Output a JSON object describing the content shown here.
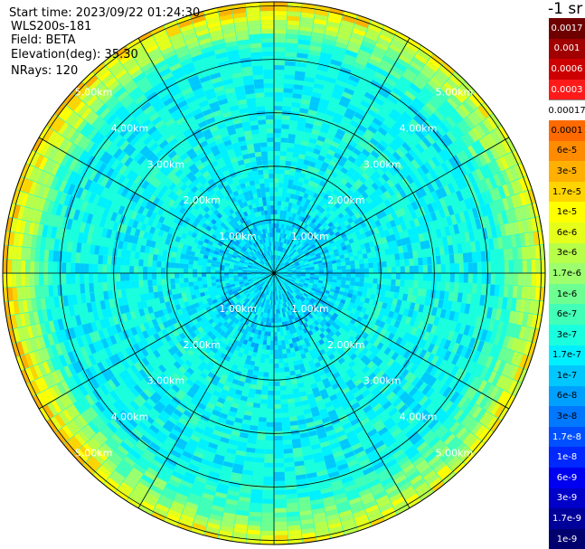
{
  "info": {
    "start_time": "Start time: 2023/09/22 01:24:30",
    "instrument": "WLS200s-181",
    "field": "Field: BETA",
    "elevation": "Elevation(deg): 35.30",
    "nrays": "NRays: 120"
  },
  "colorbar": {
    "title": "-1 sr",
    "labels": [
      "0.0017",
      "0.001",
      "0.0006",
      "0.0003",
      "0.00017",
      "0.0001",
      "6e-5",
      "3e-5",
      "1.7e-5",
      "1e-5",
      "6e-6",
      "3e-6",
      "1.7e-6",
      "1e-6",
      "6e-7",
      "3e-7",
      "1.7e-7",
      "1e-7",
      "6e-8",
      "3e-8",
      "1.7e-8",
      "1e-8",
      "6e-9",
      "3e-9",
      "1.7e-9",
      "1e-9"
    ],
    "colors": [
      "#6e0000",
      "#a00000",
      "#cc0000",
      "#ff1a1a",
      "#ffffff",
      "#ff6a00",
      "#ff8c00",
      "#ffb000",
      "#ffd400",
      "#ffff00",
      "#e6ff1a",
      "#b8ff4a",
      "#9dff6e",
      "#6dff91",
      "#42ffb8",
      "#1affde",
      "#00f0ff",
      "#00c8ff",
      "#00a0ff",
      "#0078ff",
      "#0050ff",
      "#0028ff",
      "#0000f0",
      "#0000c8",
      "#00009a",
      "#00006e"
    ],
    "label_colors": [
      "#ffffff",
      "#ffffff",
      "#ffffff",
      "#ffffff",
      "#000000",
      "#000000",
      "#000000",
      "#000000",
      "#000000",
      "#000000",
      "#000000",
      "#000000",
      "#000000",
      "#000000",
      "#000000",
      "#000000",
      "#000000",
      "#000000",
      "#000000",
      "#000000",
      "#ffffff",
      "#ffffff",
      "#ffffff",
      "#ffffff",
      "#ffffff",
      "#ffffff"
    ]
  },
  "chart_data": {
    "type": "ppi",
    "field": "BETA",
    "units": "-1 sr",
    "elevation_deg": 35.3,
    "n_rays": 120,
    "range_rings_km": [
      1.0,
      2.0,
      3.0,
      4.0,
      5.0
    ],
    "range_labels": [
      "1.00km",
      "2.00km",
      "3.00km",
      "4.00km",
      "5.00km"
    ],
    "max_range_km": 5.0,
    "azimuth_spokes_deg": [
      0,
      30,
      60,
      90,
      120,
      150,
      180,
      210,
      240,
      270,
      300,
      330
    ],
    "radial_profile": [
      {
        "range_km": 0.5,
        "beta": 1.7e-07
      },
      {
        "range_km": 1.0,
        "beta": 1.7e-07
      },
      {
        "range_km": 2.0,
        "beta": 3e-07
      },
      {
        "range_km": 3.0,
        "beta": 3e-07
      },
      {
        "range_km": 4.0,
        "beta": 3e-07
      },
      {
        "range_km": 4.6,
        "beta": 1.7e-06
      },
      {
        "range_km": 4.9,
        "beta": 1e-05
      }
    ]
  }
}
